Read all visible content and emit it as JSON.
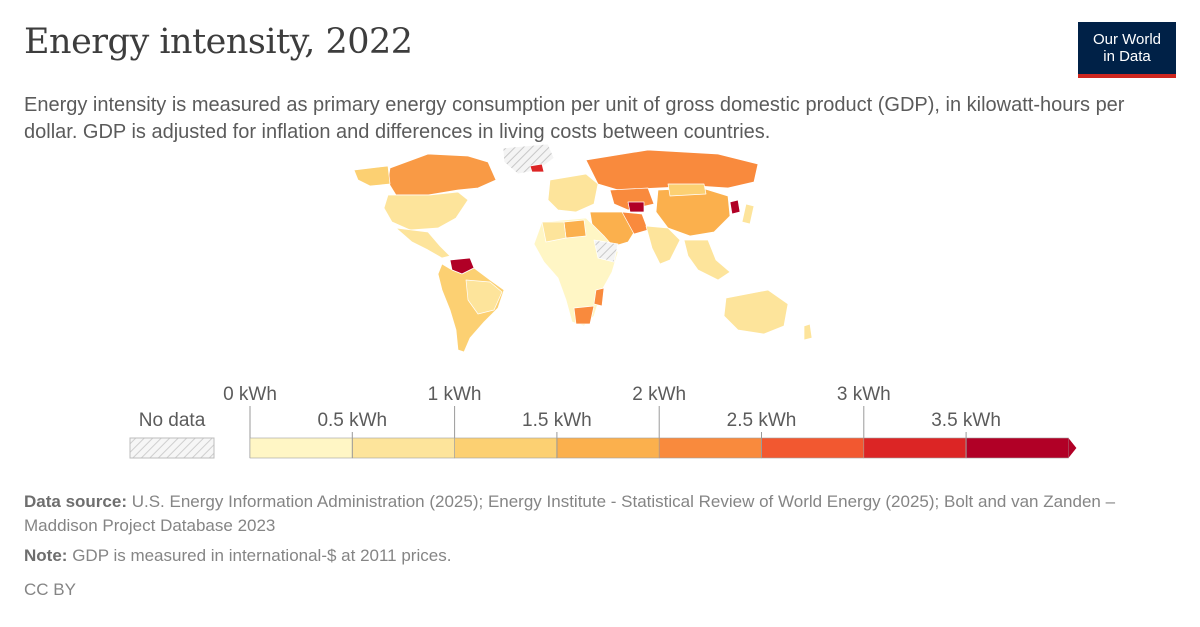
{
  "header": {
    "title": "Energy intensity, 2022",
    "subtitle": "Energy intensity is measured as primary energy consumption per unit of gross domestic product (GDP), in kilowatt-hours per dollar. GDP is adjusted for inflation and differences in living costs between countries."
  },
  "logo": {
    "line1": "Our World",
    "line2": "in Data"
  },
  "legend": {
    "no_data_label": "No data",
    "major_ticks": [
      "0 kWh",
      "1 kWh",
      "2 kWh",
      "3 kWh"
    ],
    "minor_ticks": [
      "0.5 kWh",
      "1.5 kWh",
      "2.5 kWh",
      "3.5 kWh"
    ],
    "bin_colors": [
      "#fff6c5",
      "#fde49b",
      "#fcd072",
      "#fbb04d",
      "#f98a3d",
      "#f25830",
      "#dc2525",
      "#b10026"
    ]
  },
  "footer": {
    "source_label": "Data source:",
    "source_text": "U.S. Energy Information Administration (2025); Energy Institute - Statistical Review of World Energy (2025); Bolt and van Zanden – Maddison Project Database 2023",
    "note_label": "Note:",
    "note_text": "GDP is measured in international-$ at 2011 prices.",
    "license": "CC BY"
  }
}
